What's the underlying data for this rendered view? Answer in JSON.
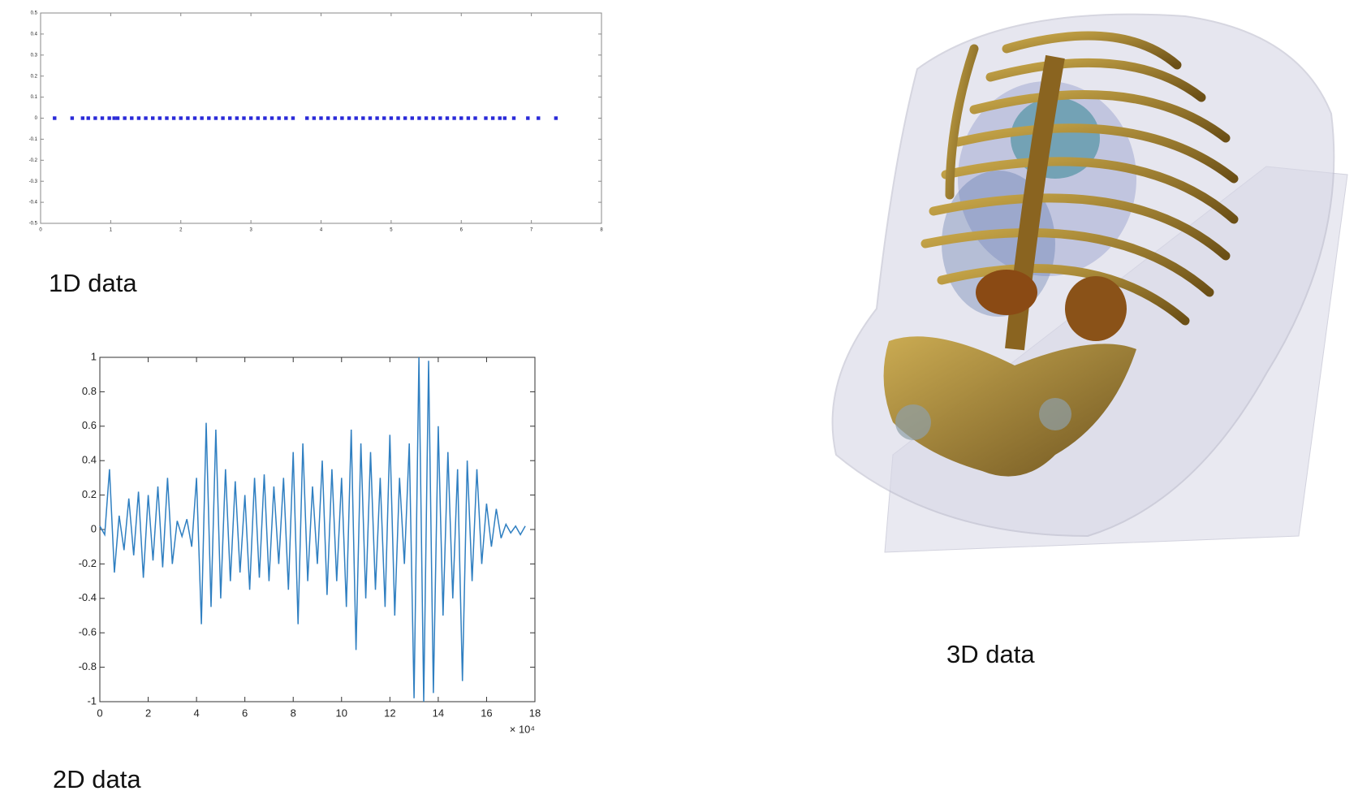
{
  "chart_data": [
    {
      "type": "scatter",
      "title": "1D data",
      "color": "#2a2ad8",
      "x": [
        0.2,
        0.45,
        0.6,
        0.68,
        0.78,
        0.88,
        0.98,
        1.05,
        1.1,
        1.2,
        1.3,
        1.4,
        1.5,
        1.6,
        1.7,
        1.8,
        1.9,
        2.0,
        2.1,
        2.2,
        2.3,
        2.4,
        2.5,
        2.6,
        2.7,
        2.8,
        2.9,
        3.0,
        3.1,
        3.2,
        3.3,
        3.4,
        3.5,
        3.6,
        3.8,
        3.9,
        4.0,
        4.1,
        4.2,
        4.3,
        4.4,
        4.5,
        4.6,
        4.7,
        4.8,
        4.9,
        5.0,
        5.1,
        5.2,
        5.3,
        5.4,
        5.5,
        5.6,
        5.7,
        5.8,
        5.9,
        6.0,
        6.1,
        6.2,
        6.35,
        6.45,
        6.55,
        6.62,
        6.75,
        6.95,
        7.1,
        7.35
      ],
      "y": [
        0,
        0,
        0,
        0,
        0,
        0,
        0,
        0,
        0,
        0,
        0,
        0,
        0,
        0,
        0,
        0,
        0,
        0,
        0,
        0,
        0,
        0,
        0,
        0,
        0,
        0,
        0,
        0,
        0,
        0,
        0,
        0,
        0,
        0,
        0,
        0,
        0,
        0,
        0,
        0,
        0,
        0,
        0,
        0,
        0,
        0,
        0,
        0,
        0,
        0,
        0,
        0,
        0,
        0,
        0,
        0,
        0,
        0,
        0,
        0,
        0,
        0,
        0,
        0,
        0,
        0,
        0
      ],
      "xlim": [
        0,
        8
      ],
      "xticks": [
        0,
        1,
        2,
        3,
        4,
        5,
        6,
        7,
        8
      ],
      "ylim": [
        -0.5,
        0.5
      ],
      "yticks": [
        0.5,
        0.4,
        0.3,
        0.2,
        0.1,
        0,
        -0.1,
        -0.2,
        -0.3,
        -0.4,
        -0.5
      ]
    },
    {
      "type": "line",
      "title": "2D data",
      "color": "#2f7fc1",
      "x_multiplier_label": "× 10⁴",
      "x": [
        0,
        0.2,
        0.4,
        0.6,
        0.8,
        1.0,
        1.2,
        1.4,
        1.6,
        1.8,
        2.0,
        2.2,
        2.4,
        2.6,
        2.8,
        3.0,
        3.2,
        3.4,
        3.6,
        3.8,
        4.0,
        4.2,
        4.4,
        4.6,
        4.8,
        5.0,
        5.2,
        5.4,
        5.6,
        5.8,
        6.0,
        6.2,
        6.4,
        6.6,
        6.8,
        7.0,
        7.2,
        7.4,
        7.6,
        7.8,
        8.0,
        8.2,
        8.4,
        8.6,
        8.8,
        9.0,
        9.2,
        9.4,
        9.6,
        9.8,
        10.0,
        10.2,
        10.4,
        10.6,
        10.8,
        11.0,
        11.2,
        11.4,
        11.6,
        11.8,
        12.0,
        12.2,
        12.4,
        12.6,
        12.8,
        13.0,
        13.2,
        13.4,
        13.6,
        13.8,
        14.0,
        14.2,
        14.4,
        14.6,
        14.8,
        15.0,
        15.2,
        15.4,
        15.6,
        15.8,
        16.0,
        16.2,
        16.4,
        16.6,
        16.8,
        17.0,
        17.2,
        17.4,
        17.6
      ],
      "y": [
        0.02,
        -0.03,
        0.35,
        -0.25,
        0.08,
        -0.12,
        0.18,
        -0.15,
        0.22,
        -0.28,
        0.2,
        -0.18,
        0.25,
        -0.22,
        0.3,
        -0.2,
        0.05,
        -0.04,
        0.06,
        -0.1,
        0.3,
        -0.55,
        0.62,
        -0.45,
        0.58,
        -0.4,
        0.35,
        -0.3,
        0.28,
        -0.25,
        0.2,
        -0.35,
        0.3,
        -0.28,
        0.32,
        -0.3,
        0.25,
        -0.2,
        0.3,
        -0.35,
        0.45,
        -0.55,
        0.5,
        -0.3,
        0.25,
        -0.2,
        0.4,
        -0.38,
        0.35,
        -0.3,
        0.3,
        -0.45,
        0.58,
        -0.7,
        0.5,
        -0.4,
        0.45,
        -0.35,
        0.3,
        -0.45,
        0.55,
        -0.5,
        0.3,
        -0.2,
        0.5,
        -0.98,
        1,
        -1,
        0.98,
        -0.95,
        0.6,
        -0.5,
        0.45,
        -0.4,
        0.35,
        -0.88,
        0.4,
        -0.3,
        0.35,
        -0.2,
        0.15,
        -0.1,
        0.12,
        -0.05,
        0.03,
        -0.02,
        0.02,
        -0.03,
        0.02
      ],
      "xlim": [
        0,
        18
      ],
      "xticks": [
        0,
        2,
        4,
        6,
        8,
        10,
        12,
        14,
        16,
        18
      ],
      "ylim": [
        -1,
        1
      ],
      "yticks": [
        1,
        0.8,
        0.6,
        0.4,
        0.2,
        0,
        -0.2,
        -0.4,
        -0.6,
        -0.8,
        -1
      ]
    }
  ],
  "image": {
    "caption": "3D data"
  }
}
